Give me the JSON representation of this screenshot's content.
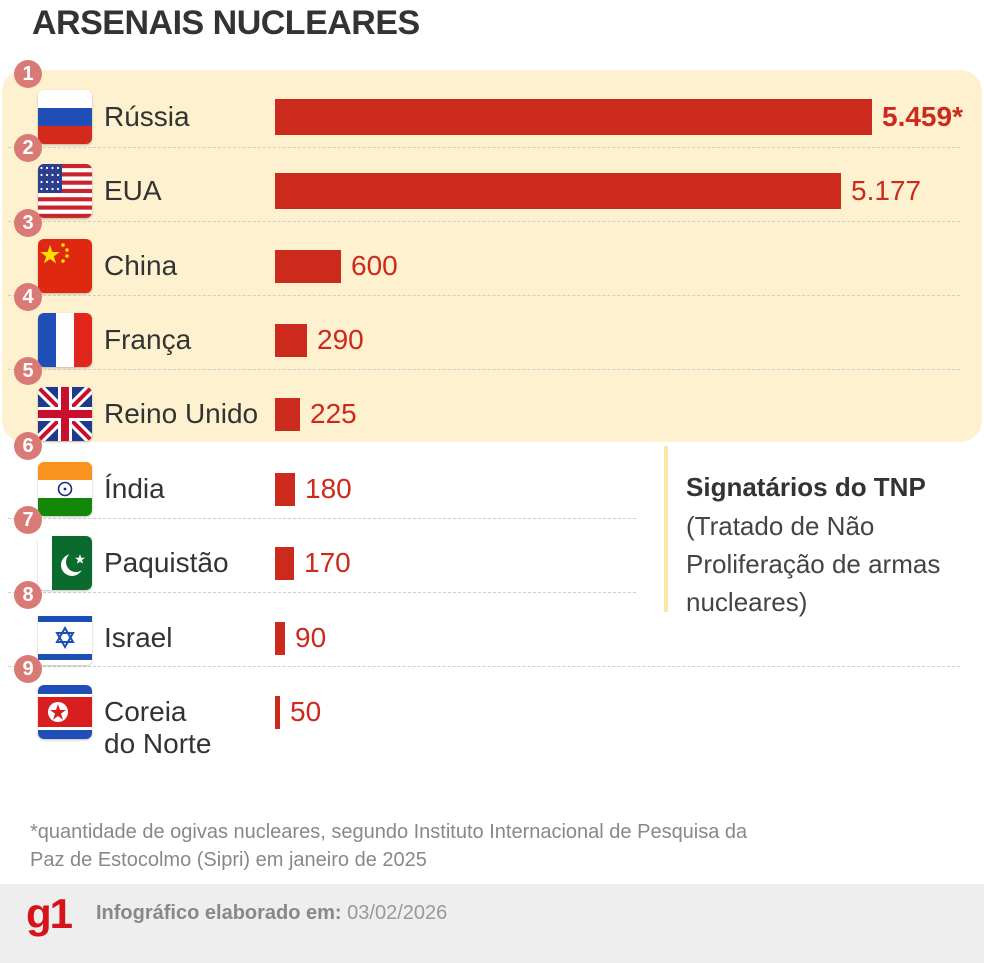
{
  "title": "ARSENAIS NUCLEARES",
  "rows": [
    {
      "rank": "1",
      "country": "Rússia",
      "value_label": "5.459*",
      "flag": "russia-flag-icon"
    },
    {
      "rank": "2",
      "country": "EUA",
      "value_label": "5.177",
      "flag": "usa-flag-icon"
    },
    {
      "rank": "3",
      "country": "China",
      "value_label": "600",
      "flag": "china-flag-icon"
    },
    {
      "rank": "4",
      "country": "França",
      "value_label": "290",
      "flag": "france-flag-icon"
    },
    {
      "rank": "5",
      "country": "Reino Unido",
      "value_label": "225",
      "flag": "uk-flag-icon"
    },
    {
      "rank": "6",
      "country": "Índia",
      "value_label": "180",
      "flag": "india-flag-icon"
    },
    {
      "rank": "7",
      "country": "Paquistão",
      "value_label": "170",
      "flag": "pakistan-flag-icon"
    },
    {
      "rank": "8",
      "country": "Israel",
      "value_label": "90",
      "flag": "israel-flag-icon"
    },
    {
      "rank": "9",
      "country_line1": "Coreia",
      "country_line2": "do Norte",
      "value_label": "50",
      "flag": "north-korea-flag-icon"
    }
  ],
  "tnp": {
    "heading": "Signatários do TNP",
    "description": "(Tratado de Não Proliferação de armas nucleares)"
  },
  "footnote": "*quantidade de ogivas nucleares, segundo Instituto Internacional de Pesquisa da Paz de Estocolmo (Sipri) em janeiro de 2025",
  "footer": {
    "logo": "g1",
    "label": "Infográfico elaborado em:",
    "date": "03/02/2026"
  },
  "colors": {
    "bar": "#cc2a1c",
    "tnp_highlight": "#fdf1cf",
    "rank_badge": "#d97a76"
  },
  "chart_data": {
    "type": "bar",
    "orientation": "horizontal",
    "title": "ARSENAIS NUCLEARES",
    "categories": [
      "Rússia",
      "EUA",
      "China",
      "França",
      "Reino Unido",
      "Índia",
      "Paquistão",
      "Israel",
      "Coreia do Norte"
    ],
    "values": [
      5459,
      5177,
      600,
      290,
      225,
      180,
      170,
      90,
      50
    ],
    "value_labels": [
      "5.459*",
      "5.177",
      "600",
      "290",
      "225",
      "180",
      "170",
      "90",
      "50"
    ],
    "highlighted_group": {
      "label": "Signatários do TNP",
      "categories": [
        "Rússia",
        "EUA",
        "China",
        "França",
        "Reino Unido"
      ]
    },
    "grid": false
  }
}
